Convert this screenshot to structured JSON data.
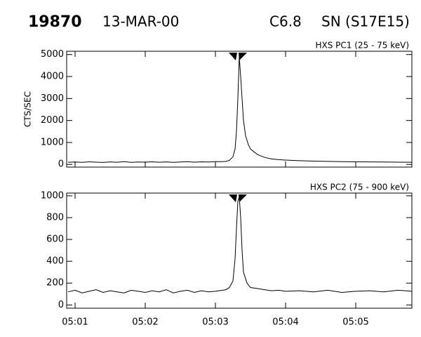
{
  "header": {
    "event": "19870",
    "date": "13-MAR-00",
    "class": "C6.8",
    "location": "SN (S17E15)"
  },
  "chart_data": [
    {
      "type": "line",
      "title": "HXS PC1 (25 - 75 keV)",
      "y_label": "CTS/SEC",
      "xlim": [
        0.88,
        5.8
      ],
      "xticks": [
        1,
        2,
        3,
        4,
        5
      ],
      "ylim": [
        -120,
        5150
      ],
      "yticks": [
        0,
        1000,
        2000,
        3000,
        4000,
        5000
      ],
      "color": "#000000",
      "x": [
        0.9,
        1.0,
        1.1,
        1.2,
        1.3,
        1.4,
        1.5,
        1.6,
        1.7,
        1.8,
        1.9,
        2.0,
        2.1,
        2.2,
        2.3,
        2.4,
        2.5,
        2.6,
        2.7,
        2.8,
        2.9,
        3.0,
        3.1,
        3.15,
        3.2,
        3.25,
        3.28,
        3.3,
        3.32,
        3.34,
        3.36,
        3.38,
        3.4,
        3.43,
        3.47,
        3.5,
        3.6,
        3.7,
        3.8,
        3.9,
        4.0,
        4.2,
        4.4,
        4.6,
        4.8,
        5.0,
        5.2,
        5.4,
        5.6,
        5.8
      ],
      "values": [
        100,
        110,
        95,
        120,
        105,
        90,
        115,
        100,
        125,
        95,
        110,
        105,
        120,
        100,
        115,
        95,
        110,
        125,
        105,
        120,
        110,
        130,
        125,
        140,
        190,
        350,
        700,
        1500,
        3000,
        4900,
        4000,
        3000,
        2000,
        1300,
        900,
        700,
        450,
        320,
        250,
        220,
        200,
        170,
        150,
        140,
        130,
        120,
        115,
        110,
        105,
        100
      ]
    },
    {
      "type": "line",
      "title": "HXS PC2 (75 - 900 keV)",
      "xlim": [
        0.88,
        5.8
      ],
      "xticks": [
        {
          "value": 1,
          "label": "05:01"
        },
        {
          "value": 2,
          "label": "05:02"
        },
        {
          "value": 3,
          "label": "05:03"
        },
        {
          "value": 4,
          "label": "05:04"
        },
        {
          "value": 5,
          "label": "05:05"
        }
      ],
      "ylim": [
        -30,
        1025
      ],
      "yticks": [
        0,
        200,
        400,
        600,
        800,
        1000
      ],
      "color": "#000000",
      "x": [
        0.9,
        1.0,
        1.1,
        1.2,
        1.3,
        1.4,
        1.5,
        1.6,
        1.7,
        1.8,
        1.9,
        2.0,
        2.1,
        2.2,
        2.3,
        2.4,
        2.5,
        2.6,
        2.7,
        2.8,
        2.9,
        3.0,
        3.1,
        3.15,
        3.2,
        3.25,
        3.28,
        3.3,
        3.32,
        3.34,
        3.36,
        3.38,
        3.4,
        3.45,
        3.5,
        3.6,
        3.7,
        3.8,
        3.9,
        4.0,
        4.2,
        4.4,
        4.6,
        4.8,
        5.0,
        5.2,
        5.4,
        5.6,
        5.8
      ],
      "values": [
        120,
        135,
        110,
        125,
        140,
        115,
        130,
        120,
        110,
        135,
        125,
        115,
        130,
        120,
        140,
        110,
        125,
        135,
        115,
        130,
        120,
        125,
        135,
        140,
        160,
        220,
        420,
        700,
        950,
        990,
        800,
        500,
        300,
        200,
        160,
        150,
        140,
        130,
        135,
        125,
        130,
        120,
        135,
        115,
        125,
        130,
        120,
        135,
        125
      ]
    }
  ]
}
